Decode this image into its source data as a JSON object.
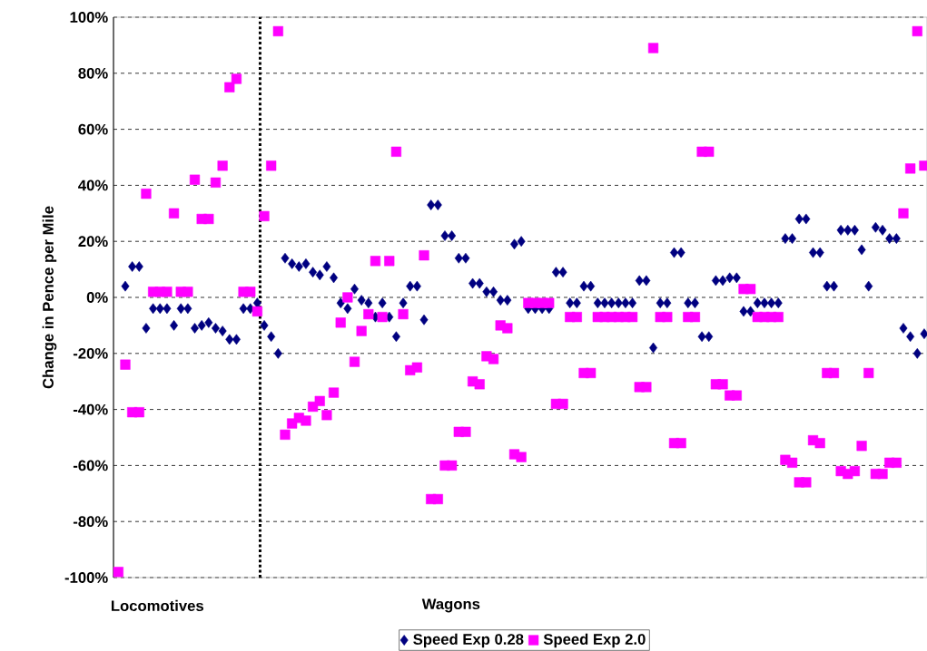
{
  "chart_data": {
    "type": "scatter",
    "ylabel": "Change in Pence per Mile",
    "categories": [
      null,
      null,
      null,
      null,
      null,
      null,
      null,
      null,
      null,
      null,
      null,
      null,
      null,
      null,
      null,
      null,
      null,
      null,
      null,
      null,
      null,
      null,
      null,
      null,
      null,
      null,
      null,
      null,
      null,
      null,
      null,
      null,
      null,
      null,
      null,
      null,
      null,
      null,
      null,
      null,
      null,
      null,
      null,
      null,
      null,
      null,
      null,
      null,
      null,
      null,
      null,
      null,
      null,
      null,
      null,
      null,
      null,
      null,
      null,
      null,
      null,
      null,
      null,
      null,
      null,
      null,
      null,
      null,
      null,
      null,
      null,
      null,
      null,
      null,
      null,
      null,
      null,
      null,
      null,
      null,
      null,
      null,
      null,
      null,
      null,
      null,
      null,
      null,
      null,
      null,
      null,
      null,
      null,
      null,
      null,
      null,
      null,
      null,
      null,
      null,
      null,
      null,
      null,
      null,
      null,
      null,
      null,
      null,
      null,
      null,
      null,
      null,
      null,
      null,
      null,
      null,
      null
    ],
    "series": [
      {
        "name": "Speed Exp 0.28",
        "color": "#000080",
        "marker": "diamond",
        "values": [
          null,
          4,
          11,
          11,
          -11,
          -4,
          -4,
          -4,
          -10,
          -4,
          -4,
          -11,
          -10,
          -9,
          -11,
          -12,
          -15,
          -15,
          -4,
          -4,
          -2,
          -10,
          -14,
          -20,
          14,
          12,
          11,
          12,
          9,
          8,
          11,
          7,
          -2,
          -4,
          3,
          -1,
          -2,
          -7,
          -2,
          -7,
          -14,
          -2,
          4,
          4,
          -8,
          33,
          33,
          22,
          22,
          14,
          14,
          5,
          5,
          2,
          2,
          -1,
          -1,
          19,
          20,
          -4,
          -4,
          -4,
          -4,
          9,
          9,
          -2,
          -2,
          4,
          4,
          -2,
          -2,
          -2,
          -2,
          -2,
          -2,
          6,
          6,
          -18,
          -2,
          -2,
          16,
          16,
          -2,
          -2,
          -14,
          -14,
          6,
          6,
          7,
          7,
          -5,
          -5,
          -2,
          -2,
          -2,
          -2,
          21,
          21,
          28,
          28,
          16,
          16,
          4,
          4,
          24,
          24,
          24,
          17,
          4,
          25,
          24,
          21,
          21,
          -11,
          -14,
          -20,
          -13
        ]
      },
      {
        "name": "Speed Exp 2.0",
        "color": "#ff00ff",
        "marker": "square",
        "values": [
          -98,
          -24,
          -41,
          -41,
          37,
          2,
          2,
          2,
          30,
          2,
          2,
          42,
          28,
          28,
          41,
          47,
          75,
          78,
          2,
          2,
          -5,
          29,
          47,
          95,
          -49,
          -45,
          -43,
          -44,
          -39,
          -37,
          -42,
          -34,
          -9,
          0,
          -23,
          -12,
          -6,
          13,
          -7,
          13,
          52,
          -6,
          -26,
          -25,
          15,
          -72,
          -72,
          -60,
          -60,
          -48,
          -48,
          -30,
          -31,
          -21,
          -22,
          -10,
          -11,
          -56,
          -57,
          -2,
          -2,
          -2,
          -2,
          -38,
          -38,
          -7,
          -7,
          -27,
          -27,
          -7,
          -7,
          -7,
          -7,
          -7,
          -7,
          -32,
          -32,
          89,
          -7,
          -7,
          -52,
          -52,
          -7,
          -7,
          52,
          52,
          -31,
          -31,
          -35,
          -35,
          3,
          3,
          -7,
          -7,
          -7,
          -7,
          -58,
          -59,
          -66,
          -66,
          -51,
          -52,
          -27,
          -27,
          -62,
          -63,
          -62,
          -53,
          -27,
          -63,
          -63,
          -59,
          -59,
          30,
          46,
          95,
          47
        ]
      }
    ],
    "ylim": [
      -100,
      100
    ],
    "yticks": [
      {
        "value": -100,
        "label": "-100%"
      },
      {
        "value": -80,
        "label": "-80%"
      },
      {
        "value": -60,
        "label": "-60%"
      },
      {
        "value": -40,
        "label": "-40%"
      },
      {
        "value": -20,
        "label": "-20%"
      },
      {
        "value": 0,
        "label": "0%"
      },
      {
        "value": 20,
        "label": "20%"
      },
      {
        "value": 40,
        "label": "40%"
      },
      {
        "value": 60,
        "label": "60%"
      },
      {
        "value": 80,
        "label": "80%"
      },
      {
        "value": 100,
        "label": "100%"
      }
    ],
    "grid": "y",
    "legend": "bottom",
    "annotations": [
      "Locomotives",
      "Wagons"
    ]
  }
}
